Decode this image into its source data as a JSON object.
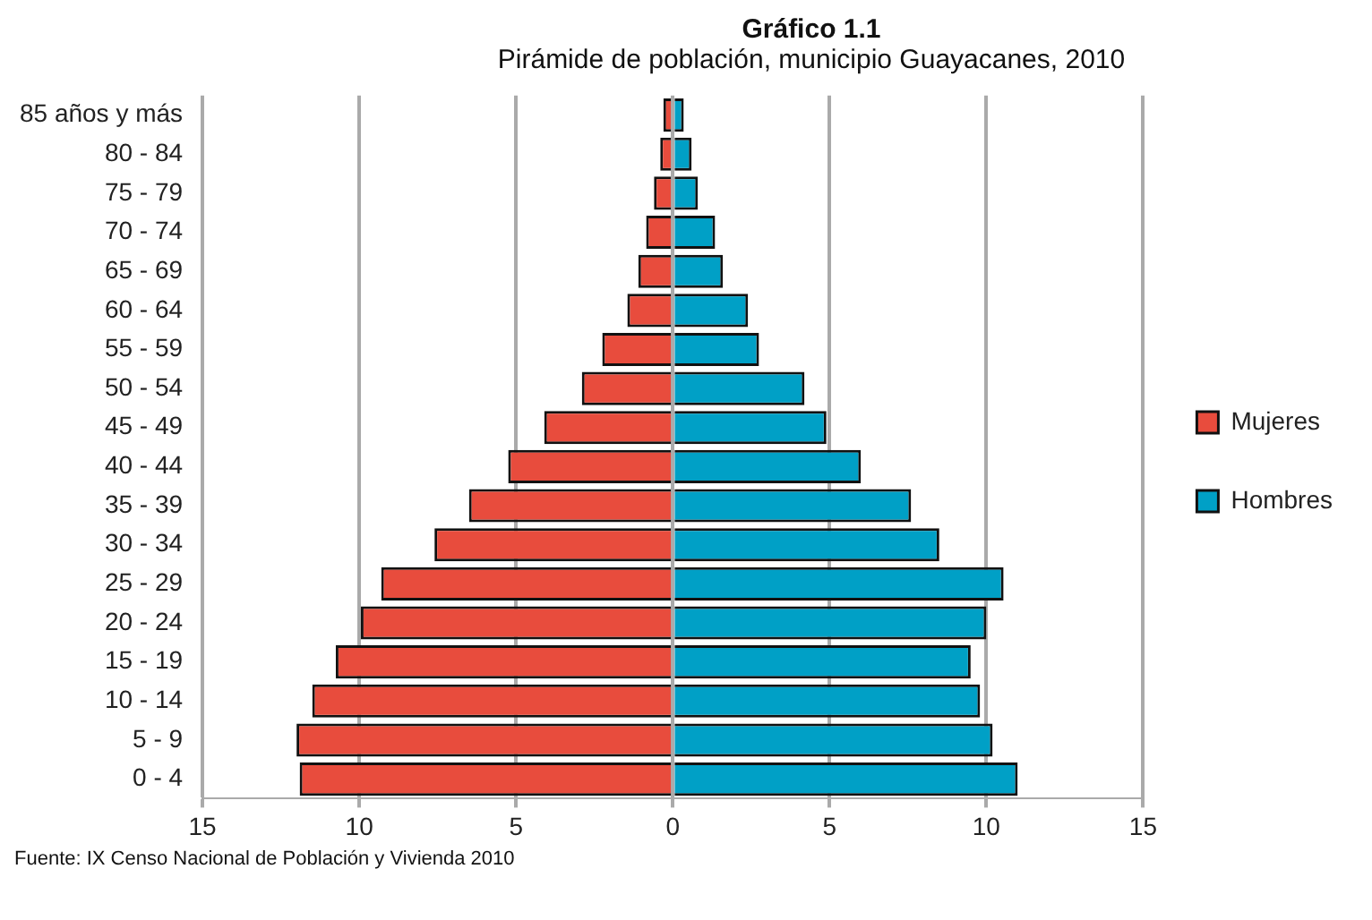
{
  "chart_data": {
    "type": "bar",
    "orientation": "horizontal",
    "stacked": true,
    "title": "Gráfico 1.1",
    "subtitle": "Pirámide de población, municipio Guayacanes, 2010",
    "categories": [
      "85 años y más",
      "80 - 84",
      "75 - 79",
      "70 - 74",
      "65 - 69",
      "60 - 64",
      "55 - 59",
      "50 - 54",
      "45 - 49",
      "40 - 44",
      "35 - 39",
      "30 - 34",
      "25 - 29",
      "20 - 24",
      "15 - 19",
      "10 - 14",
      "5 - 9",
      "0 - 4"
    ],
    "series": [
      {
        "name": "Mujeres",
        "color": "#e84c3d",
        "values": [
          -0.3,
          -0.4,
          -0.6,
          -0.85,
          -1.1,
          -1.45,
          -2.25,
          -2.9,
          -4.1,
          -5.25,
          -6.5,
          -7.6,
          -9.3,
          -9.95,
          -10.75,
          -11.5,
          -12.0,
          -11.9
        ]
      },
      {
        "name": "Hombres",
        "color": "#00a0c6",
        "values": [
          0.35,
          0.6,
          0.8,
          1.35,
          1.6,
          2.4,
          2.75,
          4.2,
          4.9,
          6.0,
          7.6,
          8.5,
          10.55,
          10.0,
          9.5,
          9.8,
          10.2,
          11.0
        ]
      }
    ],
    "xlim": [
      -15,
      15
    ],
    "xticks": [
      {
        "value": -15,
        "label": "15"
      },
      {
        "value": -10,
        "label": "10"
      },
      {
        "value": -5,
        "label": "5"
      },
      0,
      {
        "value": 5,
        "label": "5"
      },
      {
        "value": 10,
        "label": "10"
      },
      15
    ],
    "grid": "x",
    "legend": "right",
    "annotations": [
      "Fuente: IX Censo Nacional de Población y Vivienda 2010"
    ]
  }
}
